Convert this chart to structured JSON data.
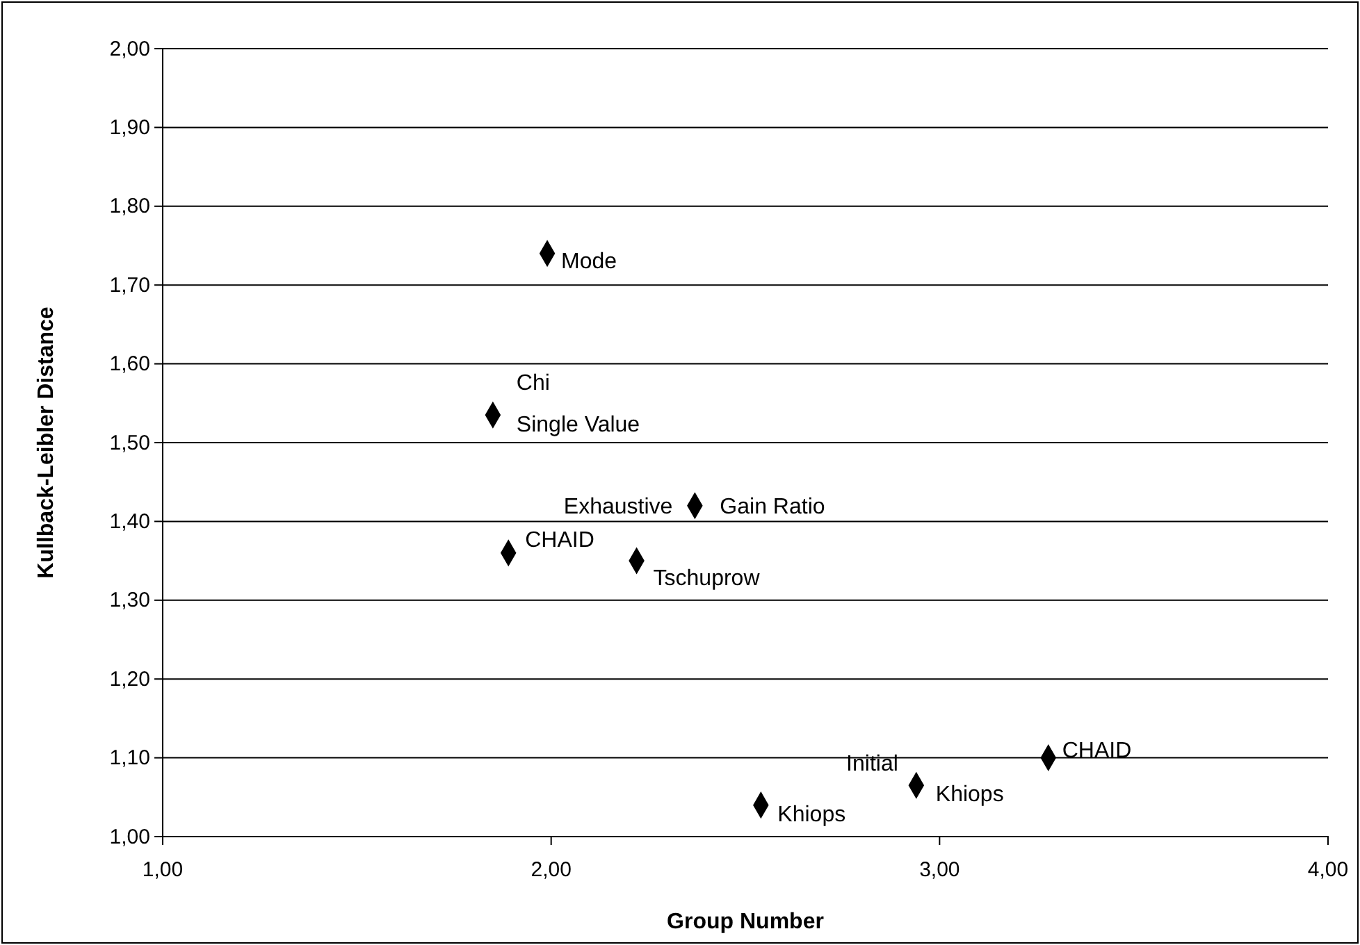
{
  "chart_data": {
    "type": "scatter",
    "xlabel": "Group Number",
    "ylabel": "Kullback-Leibler Distance",
    "series": [
      {
        "color": "#000000",
        "x": [
          1.99,
          1.85,
          2.37,
          1.89,
          2.22,
          2.54,
          2.94,
          3.28
        ],
        "values": [
          1.74,
          1.535,
          1.42,
          1.36,
          1.35,
          1.04,
          1.065,
          1.1
        ]
      }
    ],
    "marker": "diamond",
    "grid": "y",
    "xlim": [
      1,
      4
    ],
    "xticks": [
      {
        "value": 1,
        "label": "1,00"
      },
      {
        "value": 2,
        "label": "2,00"
      },
      {
        "value": 3,
        "label": "3,00"
      },
      {
        "value": 4,
        "label": "4,00"
      }
    ],
    "ylim": [
      1,
      2
    ],
    "yticks": [
      {
        "value": 1,
        "label": "1,00"
      },
      {
        "value": 1.1,
        "label": "1,10"
      },
      {
        "value": 1.2,
        "label": "1,20"
      },
      {
        "value": 1.3,
        "label": "1,30"
      },
      {
        "value": 1.4,
        "label": "1,40"
      },
      {
        "value": 1.5,
        "label": "1,50"
      },
      {
        "value": 1.6,
        "label": "1,60"
      },
      {
        "value": 1.7,
        "label": "1,70"
      },
      {
        "value": 1.8,
        "label": "1,80"
      },
      {
        "value": 1.9,
        "label": "1,90"
      },
      {
        "value": 2,
        "label": "2,00"
      }
    ],
    "annotations": [
      {
        "text": "Mode",
        "x": 1.99,
        "y": 1.74
      },
      {
        "text": "Chi",
        "x": 1.85,
        "y": 1.535
      },
      {
        "text": "Single Value",
        "x": 1.85,
        "y": 1.535
      },
      {
        "text": "Exhaustive",
        "x": 2.37,
        "y": 1.42
      },
      {
        "text": "Gain Ratio",
        "x": 2.37,
        "y": 1.42
      },
      {
        "text": "CHAID",
        "x": 1.89,
        "y": 1.36
      },
      {
        "text": "Tschuprow",
        "x": 2.22,
        "y": 1.35
      },
      {
        "text": "Khiops",
        "x": 2.54,
        "y": 1.04
      },
      {
        "text": "Initial",
        "x": 2.94,
        "y": 1.065
      },
      {
        "text": "Khiops",
        "x": 2.94,
        "y": 1.065
      },
      {
        "text": "CHAID",
        "x": 3.28,
        "y": 1.1
      }
    ]
  }
}
